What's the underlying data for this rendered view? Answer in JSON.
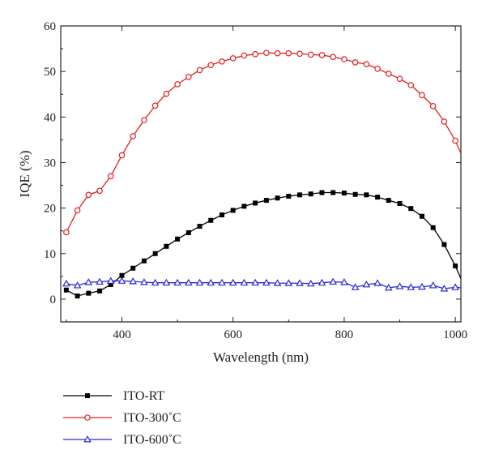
{
  "chart_data": {
    "type": "line",
    "title": "",
    "xlabel": "Wavelength (nm)",
    "ylabel": "IQE (%)",
    "xlim": [
      290,
      1010
    ],
    "ylim": [
      -5,
      60
    ],
    "xticks": [
      400,
      600,
      800,
      1000
    ],
    "yticks": [
      0,
      10,
      20,
      30,
      40,
      50,
      60
    ],
    "grid": false,
    "legend_position": "bottom-left, below plot",
    "series": [
      {
        "name": "ITO-RT",
        "color": "#000000",
        "marker": "filled-square",
        "x": [
          300,
          320,
          340,
          360,
          380,
          400,
          420,
          440,
          460,
          480,
          500,
          520,
          540,
          560,
          580,
          600,
          620,
          640,
          660,
          680,
          700,
          720,
          740,
          760,
          780,
          800,
          820,
          840,
          860,
          880,
          900,
          920,
          940,
          960,
          980,
          1000,
          1010
        ],
        "y": [
          2.0,
          0.7,
          1.3,
          1.8,
          3.2,
          5.2,
          6.8,
          8.4,
          10.0,
          11.6,
          13.2,
          14.6,
          16.0,
          17.3,
          18.5,
          19.5,
          20.4,
          21.1,
          21.7,
          22.2,
          22.6,
          22.9,
          23.1,
          23.4,
          23.4,
          23.3,
          23.0,
          22.9,
          22.4,
          21.7,
          21.0,
          19.9,
          18.2,
          15.7,
          12.0,
          7.3,
          4.5
        ]
      },
      {
        "name": "ITO-300˚C",
        "color": "#e02020",
        "marker": "open-circle",
        "x": [
          300,
          320,
          340,
          360,
          380,
          400,
          420,
          440,
          460,
          480,
          500,
          520,
          540,
          560,
          580,
          600,
          620,
          640,
          660,
          680,
          700,
          720,
          740,
          760,
          780,
          800,
          820,
          840,
          860,
          880,
          900,
          920,
          940,
          960,
          980,
          1000,
          1010
        ],
        "y": [
          14.7,
          19.5,
          22.9,
          23.8,
          27.0,
          31.6,
          35.8,
          39.3,
          42.5,
          45.1,
          47.2,
          48.8,
          50.3,
          51.4,
          52.2,
          52.9,
          53.5,
          53.8,
          54.1,
          54.0,
          54.0,
          53.9,
          53.7,
          53.6,
          53.2,
          52.7,
          52.0,
          51.6,
          50.6,
          49.5,
          48.4,
          47.0,
          44.8,
          42.4,
          39.0,
          34.8,
          32.0
        ]
      },
      {
        "name": "ITO-600˚C",
        "color": "#2a2ad0",
        "marker": "open-triangle",
        "x": [
          300,
          320,
          340,
          360,
          380,
          400,
          420,
          440,
          460,
          480,
          500,
          520,
          540,
          560,
          580,
          600,
          620,
          640,
          660,
          680,
          700,
          720,
          740,
          760,
          780,
          800,
          820,
          840,
          860,
          880,
          900,
          920,
          940,
          960,
          980,
          1000,
          1010
        ],
        "y": [
          3.4,
          3.0,
          3.7,
          3.8,
          4.0,
          4.0,
          3.9,
          3.7,
          3.6,
          3.6,
          3.6,
          3.6,
          3.6,
          3.6,
          3.6,
          3.6,
          3.6,
          3.6,
          3.6,
          3.5,
          3.5,
          3.5,
          3.4,
          3.6,
          3.8,
          3.7,
          2.6,
          3.2,
          3.5,
          2.5,
          2.8,
          2.6,
          2.7,
          3.0,
          2.3,
          2.6,
          2.5
        ]
      }
    ]
  }
}
